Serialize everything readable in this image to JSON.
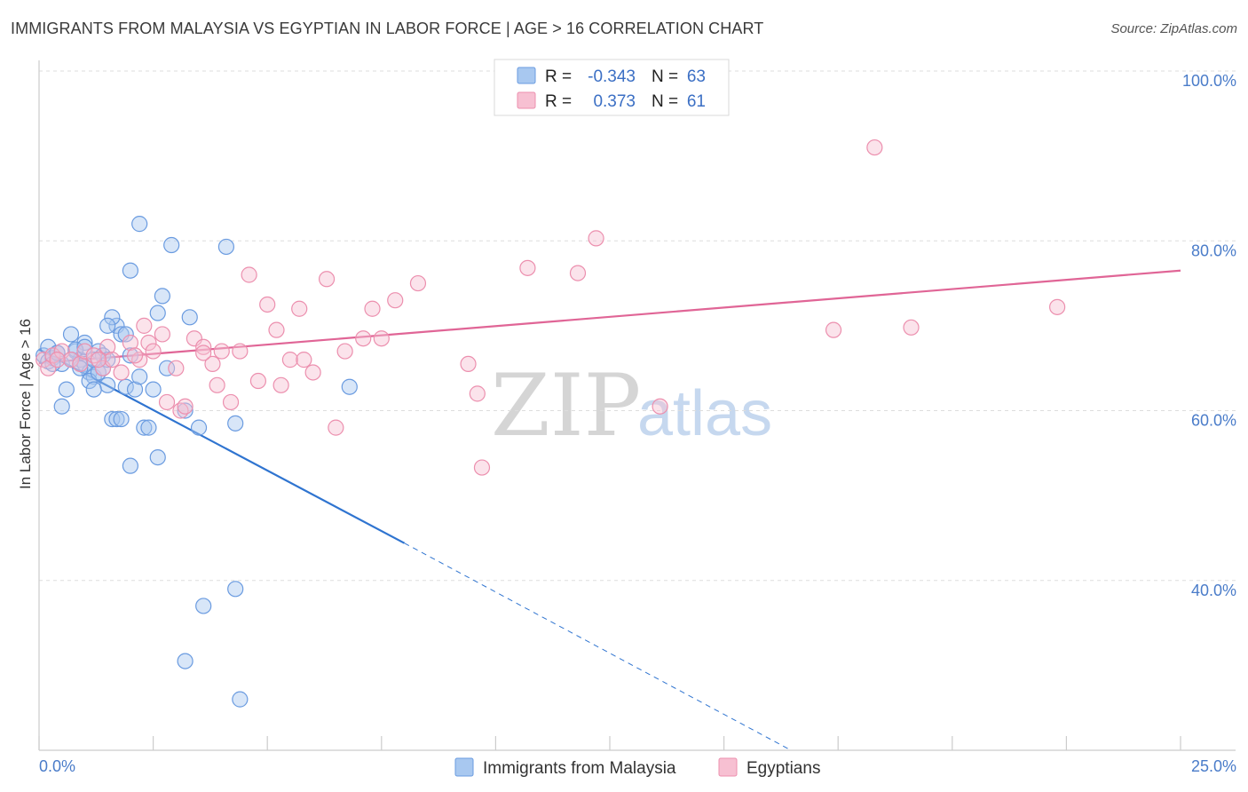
{
  "title": "IMMIGRANTS FROM MALAYSIA VS EGYPTIAN IN LABOR FORCE | AGE > 16 CORRELATION CHART",
  "source": "Source: ZipAtlas.com",
  "watermark": {
    "zip": "ZIP",
    "atlas": "atlas"
  },
  "legend": {
    "rows": [
      {
        "r_label": "R =",
        "r_value": "-0.343",
        "n_label": "N =",
        "n_value": "63",
        "color": "#a8c8f0",
        "stroke": "#6a9be0"
      },
      {
        "r_label": "R =",
        "r_value": "0.373",
        "n_label": "N =",
        "n_value": "61",
        "color": "#f7c0d2",
        "stroke": "#ec8fae"
      }
    ]
  },
  "chart_data": {
    "type": "scatter",
    "ylabel": "In Labor Force | Age > 16",
    "xlim": [
      0,
      25
    ],
    "ylim": [
      20,
      100
    ],
    "x_tick_labels": [
      "0.0%",
      "25.0%"
    ],
    "y_ticks": [
      {
        "value": 40,
        "label": "40.0%"
      },
      {
        "value": 60,
        "label": "60.0%"
      },
      {
        "value": 80,
        "label": "80.0%"
      },
      {
        "value": 100,
        "label": "100.0%"
      }
    ],
    "series": [
      {
        "name": "Immigrants from Malaysia",
        "color": "#6a9be0",
        "fill": "#a8c8f0",
        "trend": {
          "x0": 0.0,
          "y0": 67.2,
          "x1": 8.0,
          "y1": 44.4,
          "dash_x1": 16.4,
          "dash_y1": 20.2,
          "color": "#2f74d0"
        },
        "points": [
          [
            0.1,
            66.5
          ],
          [
            0.2,
            67.5
          ],
          [
            0.2,
            65.8
          ],
          [
            0.3,
            66.2
          ],
          [
            0.4,
            66.8
          ],
          [
            0.5,
            65.5
          ],
          [
            0.6,
            62.5
          ],
          [
            0.5,
            60.5
          ],
          [
            0.7,
            69
          ],
          [
            0.8,
            67
          ],
          [
            0.9,
            66
          ],
          [
            1.0,
            65.5
          ],
          [
            1.1,
            64.5
          ],
          [
            1.2,
            64
          ],
          [
            0.9,
            65
          ],
          [
            1.0,
            68
          ],
          [
            0.8,
            67.2
          ],
          [
            1.3,
            67
          ],
          [
            1.4,
            66.5
          ],
          [
            1.5,
            63
          ],
          [
            1.6,
            59
          ],
          [
            1.7,
            70
          ],
          [
            1.8,
            69
          ],
          [
            1.1,
            63.5
          ],
          [
            1.2,
            62.5
          ],
          [
            1.3,
            64.5
          ],
          [
            1.4,
            65
          ],
          [
            1.5,
            66
          ],
          [
            1.9,
            62.8
          ],
          [
            2.0,
            53.5
          ],
          [
            1.7,
            59
          ],
          [
            1.8,
            59
          ],
          [
            2.1,
            62.5
          ],
          [
            2.2,
            64
          ],
          [
            2.3,
            58
          ],
          [
            2.4,
            58
          ],
          [
            2.5,
            62.5
          ],
          [
            2.6,
            54.5
          ],
          [
            2.0,
            76.5
          ],
          [
            1.6,
            71
          ],
          [
            2.7,
            73.5
          ],
          [
            2.6,
            71.5
          ],
          [
            2.8,
            65
          ],
          [
            3.2,
            60
          ],
          [
            3.3,
            71
          ],
          [
            3.5,
            58
          ],
          [
            3.6,
            37
          ],
          [
            2.2,
            82
          ],
          [
            2.9,
            79.5
          ],
          [
            3.2,
            30.5
          ],
          [
            4.1,
            79.3
          ],
          [
            4.3,
            58.5
          ],
          [
            4.3,
            39
          ],
          [
            4.4,
            26
          ],
          [
            6.8,
            62.8
          ],
          [
            1.9,
            69
          ],
          [
            2.0,
            66.5
          ],
          [
            1.5,
            70
          ],
          [
            0.3,
            65.5
          ],
          [
            0.7,
            66
          ],
          [
            1.0,
            67.5
          ],
          [
            1.2,
            66
          ],
          [
            0.4,
            66.8
          ]
        ]
      },
      {
        "name": "Egyptians",
        "color": "#ec8fae",
        "fill": "#f7c0d2",
        "trend": {
          "x0": 0.0,
          "y0": 65.6,
          "x1": 25.0,
          "y1": 76.5,
          "color": "#e06596"
        },
        "points": [
          [
            0.1,
            66
          ],
          [
            0.2,
            65
          ],
          [
            0.3,
            66.5
          ],
          [
            0.5,
            67
          ],
          [
            0.7,
            66
          ],
          [
            0.9,
            65.5
          ],
          [
            1.0,
            67
          ],
          [
            1.2,
            66.5
          ],
          [
            1.4,
            65
          ],
          [
            1.5,
            67.5
          ],
          [
            1.6,
            66
          ],
          [
            1.8,
            64.5
          ],
          [
            2.0,
            68
          ],
          [
            2.2,
            66
          ],
          [
            2.4,
            68
          ],
          [
            2.5,
            67
          ],
          [
            2.7,
            69
          ],
          [
            2.8,
            61
          ],
          [
            3.0,
            65
          ],
          [
            3.1,
            60
          ],
          [
            3.2,
            60.5
          ],
          [
            3.4,
            68.5
          ],
          [
            3.6,
            67.5
          ],
          [
            3.8,
            65.5
          ],
          [
            3.9,
            63
          ],
          [
            4.0,
            67
          ],
          [
            4.2,
            61
          ],
          [
            4.4,
            67
          ],
          [
            4.6,
            76
          ],
          [
            4.8,
            63.5
          ],
          [
            5.0,
            72.5
          ],
          [
            5.2,
            69.5
          ],
          [
            5.3,
            63
          ],
          [
            5.5,
            66
          ],
          [
            5.7,
            72
          ],
          [
            5.8,
            66
          ],
          [
            6.0,
            64.5
          ],
          [
            6.3,
            75.5
          ],
          [
            6.5,
            58
          ],
          [
            6.7,
            67
          ],
          [
            7.1,
            68.5
          ],
          [
            7.3,
            72
          ],
          [
            7.5,
            68.5
          ],
          [
            7.8,
            73
          ],
          [
            8.3,
            75
          ],
          [
            9.4,
            65.5
          ],
          [
            9.6,
            62
          ],
          [
            9.7,
            53.3
          ],
          [
            10.7,
            76.8
          ],
          [
            11.8,
            76.2
          ],
          [
            12.2,
            80.3
          ],
          [
            13.6,
            60.5
          ],
          [
            17.4,
            69.5
          ],
          [
            18.3,
            91
          ],
          [
            19.1,
            69.8
          ],
          [
            22.3,
            72.2
          ],
          [
            2.3,
            70
          ],
          [
            2.1,
            66.5
          ],
          [
            1.3,
            66
          ],
          [
            3.6,
            66.8
          ],
          [
            0.4,
            66
          ]
        ]
      }
    ]
  }
}
